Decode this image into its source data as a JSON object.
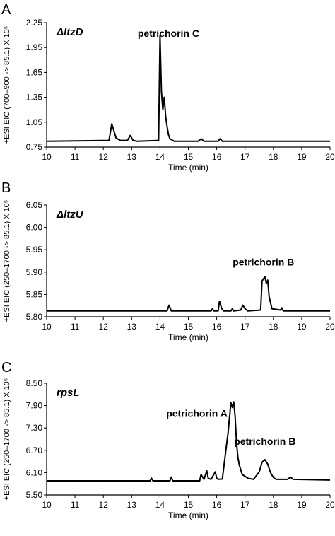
{
  "chart_data": [
    {
      "type": "line",
      "panel_letter": "A",
      "strain": "ΔltzD",
      "ylabel": "+ESI EIC (700–900 -> 85.1) X 10⁵",
      "xlabel": "Time (min)",
      "xlim": [
        10,
        20
      ],
      "ylim": [
        0.75,
        2.25
      ],
      "x_ticks": [
        "10",
        "11",
        "12",
        "13",
        "14",
        "15",
        "16",
        "17",
        "18",
        "19",
        "20"
      ],
      "y_ticks": [
        "0.75",
        "1.05",
        "1.35",
        "1.65",
        "1.95",
        "2.25"
      ],
      "annotations": [
        {
          "text": "petrichorin C",
          "x": 14.3,
          "y": 2.08
        }
      ],
      "series": [
        {
          "x": [
            10,
            12.2,
            12.3,
            12.45,
            12.6,
            12.85,
            12.95,
            13.05,
            13.2,
            13.95,
            14.0,
            14.05,
            14.1,
            14.15,
            14.2,
            14.25,
            14.3,
            14.35,
            14.5,
            15.35,
            15.45,
            15.55,
            16.05,
            16.12,
            16.2,
            20
          ],
          "y": [
            0.82,
            0.83,
            1.03,
            0.86,
            0.83,
            0.83,
            0.89,
            0.83,
            0.82,
            0.83,
            2.09,
            1.42,
            1.2,
            1.35,
            1.12,
            1.0,
            0.9,
            0.85,
            0.82,
            0.82,
            0.85,
            0.82,
            0.82,
            0.85,
            0.82,
            0.82
          ]
        }
      ]
    },
    {
      "type": "line",
      "panel_letter": "B",
      "strain": "ΔltzU",
      "ylabel": "+ESI EIC (250–1700 -> 85.1) X 10⁵",
      "xlabel": "Time (min)",
      "xlim": [
        10,
        20
      ],
      "ylim": [
        5.8,
        6.05
      ],
      "x_ticks": [
        "10",
        "11",
        "12",
        "13",
        "14",
        "15",
        "16",
        "17",
        "18",
        "19",
        "20"
      ],
      "y_ticks": [
        "5.80",
        "5.85",
        "5.90",
        "5.95",
        "6.00",
        "6.05"
      ],
      "annotations": [
        {
          "text": "petrichorin B",
          "x": 17.65,
          "y": 5.915
        }
      ],
      "series": [
        {
          "x": [
            10,
            14.25,
            14.32,
            14.4,
            15.8,
            15.85,
            15.9,
            16.05,
            16.1,
            16.18,
            16.25,
            16.5,
            16.55,
            16.6,
            16.85,
            16.92,
            17.0,
            17.1,
            17.55,
            17.6,
            17.65,
            17.7,
            17.75,
            17.8,
            17.85,
            17.95,
            18.25,
            18.3,
            18.35,
            20
          ],
          "y": [
            5.813,
            5.813,
            5.826,
            5.813,
            5.813,
            5.818,
            5.813,
            5.813,
            5.835,
            5.818,
            5.813,
            5.813,
            5.818,
            5.813,
            5.815,
            5.826,
            5.818,
            5.813,
            5.815,
            5.88,
            5.885,
            5.89,
            5.875,
            5.882,
            5.845,
            5.818,
            5.815,
            5.82,
            5.813,
            5.813
          ]
        }
      ]
    },
    {
      "type": "line",
      "panel_letter": "C",
      "strain": "rpsL",
      "ylabel": "+ESI EIC (250–1700 -> 85.1) X 10⁵",
      "xlabel": "Time (min)",
      "xlim": [
        10,
        20
      ],
      "ylim": [
        5.5,
        8.5
      ],
      "x_ticks": [
        "10",
        "11",
        "12",
        "13",
        "14",
        "15",
        "16",
        "17",
        "18",
        "19",
        "20"
      ],
      "y_ticks": [
        "5.50",
        "6.10",
        "6.70",
        "7.30",
        "7.90",
        "8.50"
      ],
      "annotations": [
        {
          "text": "petrichorin A",
          "x": 15.3,
          "y": 7.6
        },
        {
          "text": "petrichorin B",
          "x": 17.7,
          "y": 6.85
        }
      ],
      "series": [
        {
          "x": [
            10,
            13.65,
            13.7,
            13.75,
            14.35,
            14.4,
            14.45,
            15.4,
            15.45,
            15.55,
            15.65,
            15.7,
            15.8,
            15.95,
            16.0,
            16.05,
            16.2,
            16.3,
            16.4,
            16.5,
            16.55,
            16.6,
            16.65,
            16.7,
            16.75,
            16.8,
            16.9,
            17.1,
            17.3,
            17.5,
            17.6,
            17.7,
            17.8,
            17.9,
            18.0,
            18.1,
            18.5,
            18.6,
            18.7,
            20
          ],
          "y": [
            5.88,
            5.88,
            5.95,
            5.88,
            5.88,
            5.98,
            5.88,
            5.88,
            6.05,
            5.92,
            6.15,
            5.95,
            5.92,
            6.12,
            5.95,
            5.92,
            5.93,
            6.55,
            7.15,
            7.98,
            7.85,
            8.0,
            7.6,
            6.9,
            6.5,
            6.3,
            6.05,
            5.95,
            5.92,
            6.12,
            6.38,
            6.45,
            6.33,
            6.1,
            5.97,
            5.92,
            5.92,
            5.98,
            5.92,
            5.9
          ]
        }
      ]
    }
  ]
}
